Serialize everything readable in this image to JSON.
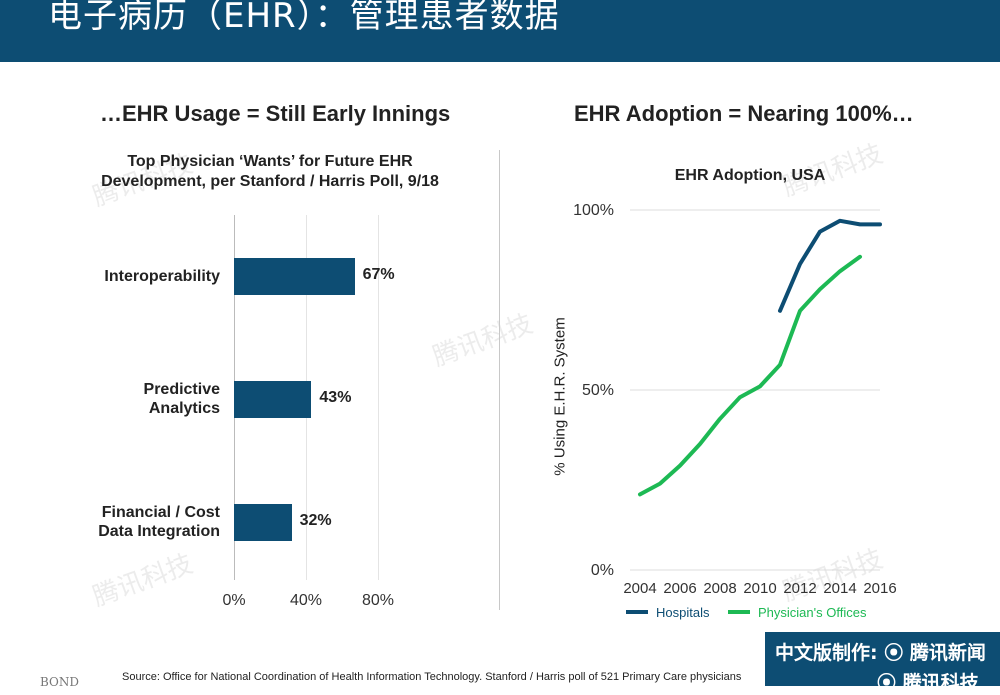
{
  "header": {
    "title": "电子病历（EHR）：管理患者数据"
  },
  "left_panel": {
    "heading": "…EHR Usage = Still Early Innings"
  },
  "right_panel": {
    "heading": "EHR Adoption = Nearing 100%…"
  },
  "chart_data": [
    {
      "type": "bar",
      "orientation": "horizontal",
      "title_line1": "Top Physician ‘Wants’ for Future EHR",
      "title_line2": "Development, per Stanford / Harris Poll, 9/18",
      "categories": [
        [
          "Interoperability"
        ],
        [
          "Predictive",
          "Analytics"
        ],
        [
          "Financial / Cost",
          "Data Integration"
        ]
      ],
      "values": [
        67,
        43,
        32
      ],
      "value_labels": [
        "67%",
        "43%",
        "32%"
      ],
      "xlim": [
        0,
        80
      ],
      "x_ticks": [
        "0%",
        "40%",
        "80%"
      ],
      "color": "#0d4d73"
    },
    {
      "type": "line",
      "title": "EHR Adoption, USA",
      "ylabel": "% Using E.H.R. System",
      "ylim": [
        0,
        100
      ],
      "xlim": [
        2004,
        2016
      ],
      "y_ticks": [
        "0%",
        "50%",
        "100%"
      ],
      "x_ticks": [
        "2004",
        "2006",
        "2008",
        "2010",
        "2012",
        "2014",
        "2016"
      ],
      "series": [
        {
          "name": "Hospitals",
          "color": "#0d4d73",
          "x": [
            2011,
            2012,
            2013,
            2014,
            2015,
            2016
          ],
          "y": [
            72,
            85,
            94,
            97,
            96,
            96
          ]
        },
        {
          "name": "Physician's Offices",
          "color": "#1db954",
          "x": [
            2004,
            2005,
            2006,
            2007,
            2008,
            2009,
            2010,
            2011,
            2012,
            2013,
            2014,
            2015
          ],
          "y": [
            21,
            24,
            29,
            35,
            42,
            48,
            51,
            57,
            72,
            78,
            83,
            87
          ]
        }
      ]
    }
  ],
  "watermark_text": "腾讯科技",
  "footer": {
    "source": "Source: Office for National Coordination of Health Information Technology. Stanford / Harris poll of 521 Primary Care physicians",
    "bond": "BOND",
    "brand_line1": "中文版制作: ⦿ 腾讯新闻",
    "brand_line2": "⦿ 腾讯科技"
  }
}
